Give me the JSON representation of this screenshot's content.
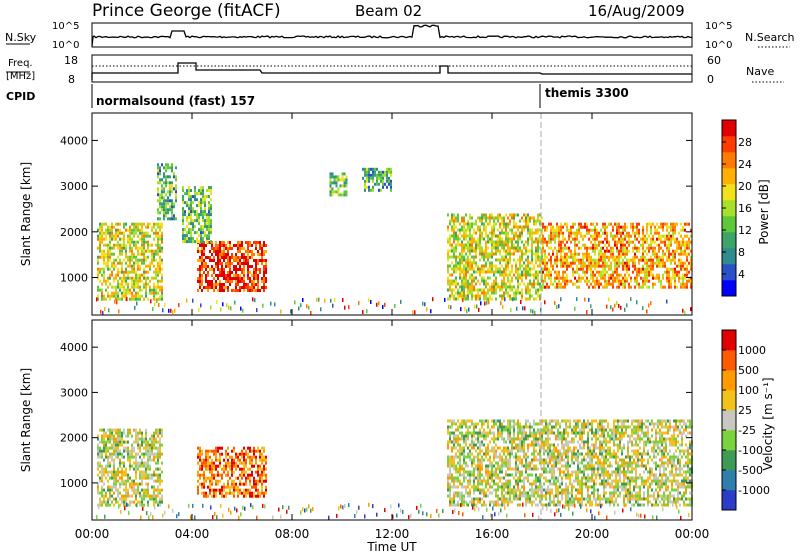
{
  "header": {
    "station": "Prince George (fitACF)",
    "beam": "Beam 02",
    "date": "16/Aug/2009"
  },
  "noise_panel": {
    "left_label": "N.Sky",
    "right_label": "N.Search",
    "left_ticks": [
      "10^5",
      "10^0"
    ],
    "right_ticks": [
      "10^5",
      "10^0"
    ]
  },
  "freq_panel": {
    "left_label_1": "Freq.",
    "left_label_2": "[MHz]",
    "right_label": "Nave",
    "left_ticks": [
      "18",
      "8"
    ],
    "right_ticks": [
      "60",
      "0"
    ]
  },
  "cpid_panel": {
    "label": "CPID",
    "modes": [
      "normalsound (fast) 157",
      "themis 3300"
    ]
  },
  "chart_data": [
    {
      "type": "heatmap",
      "title": "",
      "xlabel": "Time UT",
      "ylabel": "Slant Range [km]",
      "x_ticks": [
        "00:00",
        "04:00",
        "08:00",
        "12:00",
        "16:00",
        "20:00",
        "00:00"
      ],
      "y_ticks": [
        1000,
        2000,
        3000,
        4000
      ],
      "xlim_hours": [
        0,
        24
      ],
      "ylim_km": [
        180,
        4600
      ],
      "colorbar": {
        "label": "Power [dB]",
        "ticks": [
          "28",
          "24",
          "20",
          "16",
          "12",
          "8",
          "4"
        ],
        "colors": [
          "#0000ff",
          "#2b4fc9",
          "#2f8c8c",
          "#3ca46a",
          "#5ec83a",
          "#a6e02a",
          "#f2e21c",
          "#ffb000",
          "#ff7a00",
          "#ff3b00",
          "#e00000"
        ]
      },
      "echo_regions_hours_km": [
        {
          "t": [
            0.2,
            2.8
          ],
          "r": [
            500,
            2200
          ],
          "level": 0.55
        },
        {
          "t": [
            2.6,
            3.4
          ],
          "r": [
            2300,
            3500
          ],
          "level": 0.35
        },
        {
          "t": [
            4.2,
            7.0
          ],
          "r": [
            700,
            1800
          ],
          "level": 0.9
        },
        {
          "t": [
            3.6,
            4.8
          ],
          "r": [
            1800,
            3000
          ],
          "level": 0.4
        },
        {
          "t": [
            9.5,
            10.2
          ],
          "r": [
            2800,
            3300
          ],
          "level": 0.4
        },
        {
          "t": [
            10.8,
            12.0
          ],
          "r": [
            2900,
            3400
          ],
          "level": 0.35
        },
        {
          "t": [
            14.2,
            18.0
          ],
          "r": [
            500,
            2400
          ],
          "level": 0.55
        },
        {
          "t": [
            18.0,
            24.0
          ],
          "r": [
            800,
            2200
          ],
          "level": 0.7
        }
      ]
    },
    {
      "type": "heatmap",
      "title": "",
      "xlabel": "Time UT",
      "ylabel": "Slant Range [km]",
      "x_ticks": [
        "00:00",
        "04:00",
        "08:00",
        "12:00",
        "16:00",
        "20:00",
        "00:00"
      ],
      "y_ticks": [
        1000,
        2000,
        3000,
        4000
      ],
      "xlim_hours": [
        0,
        24
      ],
      "ylim_km": [
        180,
        4600
      ],
      "colorbar": {
        "label": "Velocity [m s⁻¹]",
        "ticks": [
          "1000",
          "500",
          "100",
          "25",
          "-25",
          "-100",
          "-500",
          "-1000"
        ],
        "colors": [
          "#2a3cc8",
          "#2e7fae",
          "#3f9a56",
          "#7ad33e",
          "#c8c8c0",
          "#f2c21c",
          "#ff9a00",
          "#ff5a00",
          "#e00000"
        ]
      },
      "echo_regions_hours_km": [
        {
          "t": [
            0.2,
            2.8
          ],
          "r": [
            500,
            2200
          ],
          "level": 0.5
        },
        {
          "t": [
            4.2,
            7.0
          ],
          "r": [
            700,
            1800
          ],
          "level": 0.8
        },
        {
          "t": [
            14.2,
            24.0
          ],
          "r": [
            500,
            2400
          ],
          "level": 0.5
        }
      ]
    }
  ]
}
